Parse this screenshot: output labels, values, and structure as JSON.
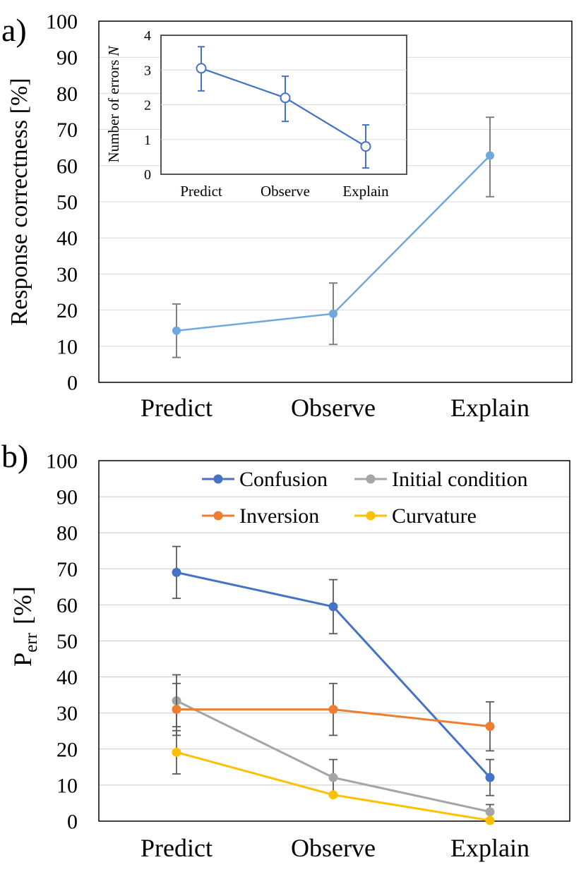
{
  "chart_data": [
    {
      "panel_label": "a)",
      "type": "line",
      "ylabel": "Response correctness  [%]",
      "ylim": [
        0,
        100
      ],
      "yticks": [
        0,
        10,
        20,
        30,
        40,
        50,
        60,
        70,
        80,
        90,
        100
      ],
      "categories": [
        "Predict",
        "Observe",
        "Explain"
      ],
      "grid": true,
      "series": [
        {
          "color": "#6FA8DC",
          "values": [
            14.3,
            19.0,
            62.8
          ],
          "err_low": [
            7.4,
            8.5,
            11.4
          ],
          "err_high": [
            7.4,
            8.5,
            10.6
          ]
        }
      ],
      "inset": {
        "type": "line",
        "ylabel_prefix": "Number of errors ",
        "ylabel_var": "N",
        "ylim": [
          0,
          4
        ],
        "yticks": [
          0,
          1,
          2,
          3,
          4
        ],
        "categories": [
          "Predict",
          "Observe",
          "Explain"
        ],
        "series": [
          {
            "color": "#4472C4",
            "values": [
              3.05,
              2.2,
              0.8
            ],
            "err_low": [
              0.65,
              0.68,
              0.62
            ],
            "err_high": [
              0.62,
              0.62,
              0.62
            ]
          }
        ]
      }
    },
    {
      "panel_label": "b)",
      "type": "line",
      "ylabel_main": "P",
      "ylabel_sub": "err",
      "ylabel_unit": "[%]",
      "ylim": [
        0,
        100
      ],
      "yticks": [
        0,
        10,
        20,
        30,
        40,
        50,
        60,
        70,
        80,
        90,
        100
      ],
      "categories": [
        "Predict",
        "Observe",
        "Explain"
      ],
      "grid": true,
      "legend_placement": "top-right",
      "series": [
        {
          "name": "Confusion",
          "color": "#4472C4",
          "values": [
            69.0,
            59.5,
            12.1
          ],
          "err": [
            7.2,
            7.5,
            5.0
          ]
        },
        {
          "name": "Initial condition",
          "color": "#A5A5A5",
          "values": [
            33.4,
            12.1,
            2.6
          ],
          "err": [
            7.2,
            5.0,
            2.0
          ]
        },
        {
          "name": "Inversion",
          "color": "#ED7D31",
          "values": [
            31.0,
            31.0,
            26.3
          ],
          "err": [
            7.2,
            7.2,
            6.8
          ]
        },
        {
          "name": "Curvature",
          "color": "#FFC000",
          "values": [
            19.1,
            7.3,
            0.2
          ],
          "err": [
            6.0,
            0,
            0
          ]
        }
      ]
    }
  ]
}
